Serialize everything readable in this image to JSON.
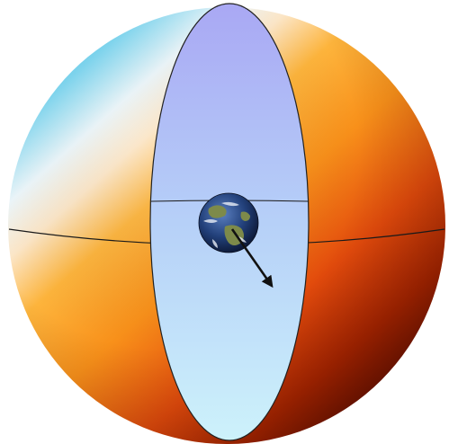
{
  "diagram": {
    "kind": "celestial-sphere-dipole",
    "colors": {
      "hot_dark": "#5a0c00",
      "hot_deep": "#a82400",
      "hot_red": "#e24a0c",
      "hot_orange": "#f8901a",
      "hot_amber": "#fdb43c",
      "warm_white": "#fde7c8",
      "cold_white": "#eef8fc",
      "cold_sky": "#7fd8f2",
      "cold_cyan": "#2fb8e6",
      "disk_top": "#a9a8f4",
      "disk_mid": "#b6d0f8",
      "disk_bottom": "#cdf2fb",
      "equator_line": "#1a1a1a",
      "arrow": "#111111",
      "earth_ocean": "#22407a",
      "earth_land": "#7d8a4a",
      "earth_cloud": "#e8eef6"
    },
    "icons": {
      "earth": "earth-icon",
      "velocity": "velocity-arrow-icon"
    }
  }
}
